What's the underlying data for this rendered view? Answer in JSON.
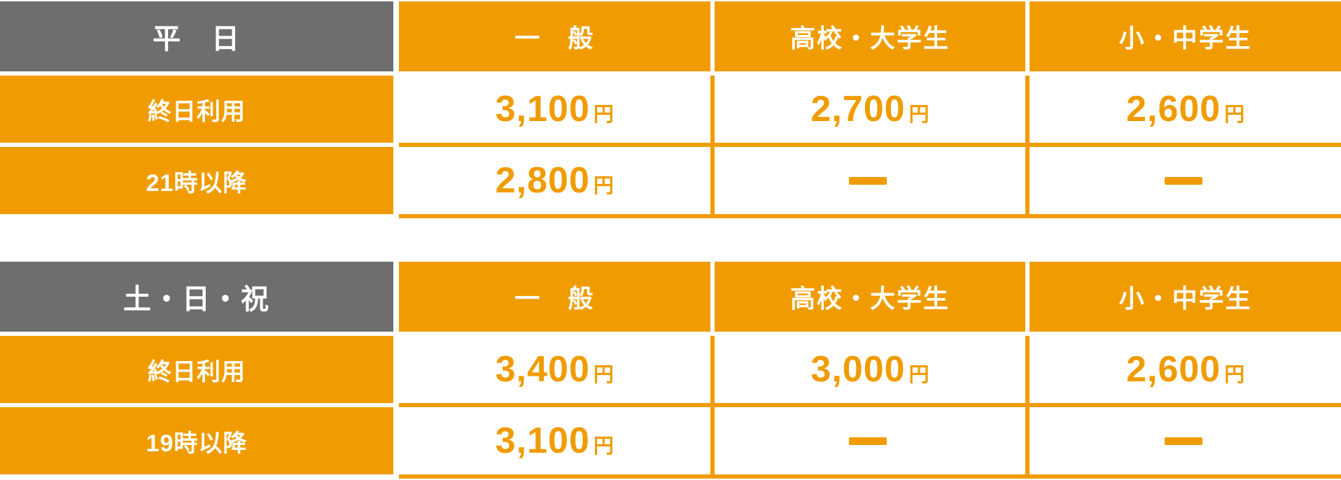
{
  "colors": {
    "accent_orange": "#F09C00",
    "header_gray": "#6E6E6E",
    "cell_white": "#FFFFFF"
  },
  "tables": [
    {
      "category": "平　日",
      "columns": [
        "一　般",
        "高校・大学生",
        "小・中学生"
      ],
      "rows": [
        {
          "label": "終日利用",
          "cells": [
            {
              "amount": "3,100",
              "unit": "円"
            },
            {
              "amount": "2,700",
              "unit": "円"
            },
            {
              "amount": "2,600",
              "unit": "円"
            }
          ]
        },
        {
          "label": "21時以降",
          "cells": [
            {
              "amount": "2,800",
              "unit": "円"
            },
            {
              "amount": "—",
              "unit": ""
            },
            {
              "amount": "—",
              "unit": ""
            }
          ]
        }
      ]
    },
    {
      "category": "土・日・祝",
      "columns": [
        "一　般",
        "高校・大学生",
        "小・中学生"
      ],
      "rows": [
        {
          "label": "終日利用",
          "cells": [
            {
              "amount": "3,400",
              "unit": "円"
            },
            {
              "amount": "3,000",
              "unit": "円"
            },
            {
              "amount": "2,600",
              "unit": "円"
            }
          ]
        },
        {
          "label": "19時以降",
          "cells": [
            {
              "amount": "3,100",
              "unit": "円"
            },
            {
              "amount": "—",
              "unit": ""
            },
            {
              "amount": "—",
              "unit": ""
            }
          ]
        }
      ]
    }
  ],
  "chart_data": [
    {
      "type": "table",
      "title": "平　日",
      "columns": [
        "",
        "一　般",
        "高校・大学生",
        "小・中学生"
      ],
      "rows": [
        [
          "終日利用",
          "3,100円",
          "2,700円",
          "2,600円"
        ],
        [
          "21時以降",
          "2,800円",
          "—",
          "—"
        ]
      ]
    },
    {
      "type": "table",
      "title": "土・日・祝",
      "columns": [
        "",
        "一　般",
        "高校・大学生",
        "小・中学生"
      ],
      "rows": [
        [
          "終日利用",
          "3,400円",
          "3,000円",
          "2,600円"
        ],
        [
          "19時以降",
          "3,100円",
          "—",
          "—"
        ]
      ]
    }
  ]
}
